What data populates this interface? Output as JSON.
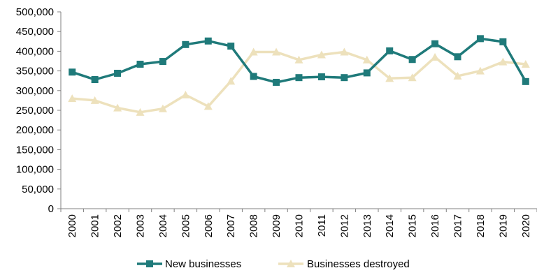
{
  "chart_data": {
    "type": "line",
    "title": "",
    "xlabel": "",
    "ylabel": "",
    "categories": [
      "2000",
      "2001",
      "2002",
      "2003",
      "2004",
      "2005",
      "2006",
      "2007",
      "2008",
      "2009",
      "2010",
      "2011",
      "2012",
      "2013",
      "2014",
      "2015",
      "2016",
      "2017",
      "2018",
      "2019",
      "2020"
    ],
    "ylim": [
      0,
      500000
    ],
    "yticks": [
      0,
      50000,
      100000,
      150000,
      200000,
      250000,
      300000,
      350000,
      400000,
      450000,
      500000
    ],
    "ytick_labels": [
      "0",
      "50,000",
      "100,000",
      "150,000",
      "200,000",
      "250,000",
      "300,000",
      "350,000",
      "400,000",
      "450,000",
      "500,000"
    ],
    "grid": false,
    "legend_position": "bottom",
    "series": [
      {
        "name": "New businesses",
        "marker": "square",
        "color": "#1f7a7a",
        "values": [
          347000,
          328000,
          344000,
          367000,
          374000,
          417000,
          426000,
          413000,
          336000,
          321000,
          333000,
          335000,
          333000,
          345000,
          401000,
          379000,
          419000,
          386000,
          432000,
          424000,
          323000
        ]
      },
      {
        "name": "Businesses destroyed",
        "marker": "triangle",
        "color": "#ede1bc",
        "values": [
          280000,
          275000,
          256000,
          245000,
          254000,
          289000,
          260000,
          324000,
          398000,
          398000,
          378000,
          391000,
          398000,
          378000,
          331000,
          333000,
          385000,
          337000,
          350000,
          373000,
          367000
        ]
      }
    ]
  }
}
